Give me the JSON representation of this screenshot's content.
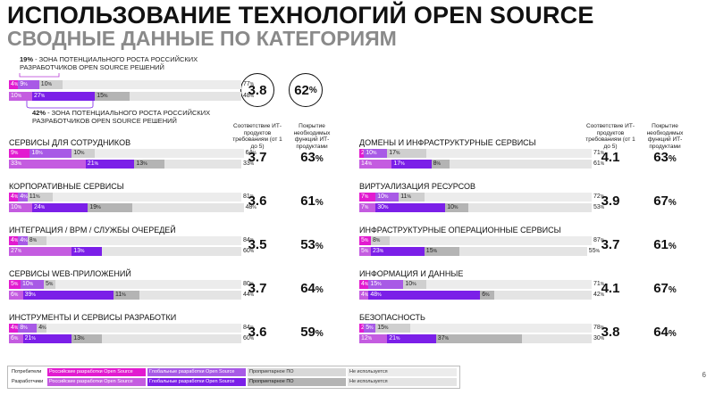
{
  "title": "ИСПОЛЬЗОВАНИЕ ТЕХНОЛОГИЙ OPEN SOURCE",
  "subtitle": "СВОДНЫЕ ДАННЫЕ ПО КАТЕГОРИЯМ",
  "notes": {
    "top_value": "19%",
    "top_text_1": " - ЗОНА ПОТЕНЦИАЛЬНОГО РОСТА РОССИЙСКИХ",
    "top_text_2": "РАЗРАБОТЧИКОВ OPEN SOURCE РЕШЕНИЙ",
    "bottom_value": "42%",
    "bottom_text_1": " - ЗОНА ПОТЕНЦИАЛЬНОГО РОСТА РОССИЙСКИХ",
    "bottom_text_2": "РАЗРАБОТЧИКОВ OPEN SOURCE РЕШЕНИЙ"
  },
  "summary": {
    "compliance": "3.8",
    "coverage": "62",
    "coverage_unit": "%"
  },
  "headers": {
    "compliance": "Соответствие ИТ-продуктов требованиям (от 1 до 5)",
    "coverage": "Покрытие необходимых функций ИТ-продуктами"
  },
  "colors": {
    "ru": "#e21bd0",
    "global": "#a85ae6",
    "proprietary": "#cfcfcf",
    "not_used": "#ececec",
    "ru_dev": "#c45ce0",
    "global_dev": "#7b1fe8",
    "proprietary_dev": "#b4b4b4",
    "not_used_dev": "#e4e4e4"
  },
  "legend": {
    "users_label": "Потребители",
    "devs_label": "Разработчики",
    "items": [
      "Российские разработки Open Source",
      "Глобальные разработки Open Source",
      "Проприетарное ПО",
      "Не используется"
    ]
  },
  "page_number": "6",
  "chart_data": {
    "type": "bar",
    "orientation": "horizontal-stacked",
    "unit": "%",
    "segment_order": [
      "Российские разработки Open Source",
      "Глобальные разработки Open Source",
      "Проприетарное ПО",
      "Не используется"
    ],
    "summary": {
      "users": [
        4,
        9,
        10,
        77
      ],
      "devs": [
        10,
        27,
        15,
        48
      ]
    },
    "categories": [
      {
        "name": "СЕРВИСЫ ДЛЯ СОТРУДНИКОВ",
        "users": [
          9,
          18,
          10,
          64
        ],
        "devs": [
          33,
          21,
          13,
          33
        ],
        "compliance": "3.7",
        "coverage": "63"
      },
      {
        "name": "КОРПОРАТИВНЫЕ СЕРВИСЫ",
        "users": [
          4,
          4,
          11,
          81
        ],
        "devs": [
          10,
          24,
          19,
          48
        ],
        "compliance": "3.6",
        "coverage": "61"
      },
      {
        "name": "ИНТЕГРАЦИЯ / BPM / СЛУЖБЫ ОЧЕРЕДЕЙ",
        "users": [
          4,
          4,
          8,
          84
        ],
        "devs": [
          27,
          13,
          0,
          60
        ],
        "compliance": "3.5",
        "coverage": "53"
      },
      {
        "name": "СЕРВИСЫ WEB-ПРИЛОЖЕНИЙ",
        "users": [
          5,
          10,
          5,
          80
        ],
        "devs": [
          6,
          39,
          11,
          44
        ],
        "compliance": "3.7",
        "coverage": "64"
      },
      {
        "name": "ИНСТРУМЕНТЫ И СЕРВИСЫ РАЗРАБОТКИ",
        "users": [
          4,
          8,
          4,
          84
        ],
        "devs": [
          6,
          21,
          13,
          60
        ],
        "compliance": "3.6",
        "coverage": "59"
      },
      {
        "name": "ДОМЕНЫ И ИНФРАСТРУКТУРНЫЕ СЕРВИСЫ",
        "users": [
          2,
          10,
          17,
          71
        ],
        "devs": [
          14,
          17,
          8,
          61
        ],
        "compliance": "4.1",
        "coverage": "63"
      },
      {
        "name": "ВИРТУАЛИЗАЦИЯ РЕСУРСОВ",
        "users": [
          7,
          10,
          11,
          72
        ],
        "devs": [
          7,
          30,
          10,
          53
        ],
        "compliance": "3.9",
        "coverage": "67"
      },
      {
        "name": "ИНФРАСТРУКТУРНЫЕ ОПЕРАЦИОННЫЕ СЕРВИСЫ",
        "users": [
          5,
          0,
          8,
          87
        ],
        "devs": [
          5,
          23,
          15,
          55
        ],
        "compliance": "3.7",
        "coverage": "61"
      },
      {
        "name": "ИНФОРМАЦИЯ И ДАННЫЕ",
        "users": [
          4,
          15,
          10,
          71
        ],
        "devs": [
          4,
          48,
          6,
          42
        ],
        "compliance": "4.1",
        "coverage": "67"
      },
      {
        "name": "БЕЗОПАСНОСТЬ",
        "users": [
          2,
          5,
          15,
          78
        ],
        "devs": [
          12,
          21,
          37,
          30
        ],
        "compliance": "3.8",
        "coverage": "64"
      }
    ]
  }
}
